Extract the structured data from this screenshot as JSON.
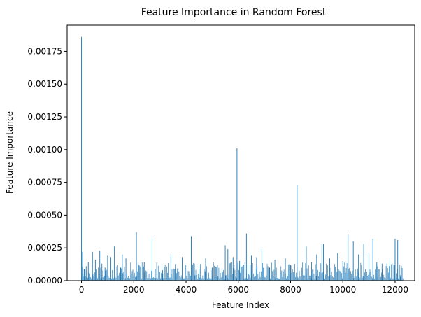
{
  "chart_data": {
    "type": "bar",
    "title": "Feature Importance in Random Forest",
    "xlabel": "Feature Index",
    "ylabel": "Feature Importance",
    "xlim": [
      -550,
      12750
    ],
    "ylim": [
      0,
      0.00195
    ],
    "xticks": [
      0,
      2000,
      4000,
      6000,
      8000,
      10000,
      12000
    ],
    "xtick_labels": [
      "0",
      "2000",
      "4000",
      "6000",
      "8000",
      "10000",
      "12000"
    ],
    "yticks": [
      0,
      0.00025,
      0.0005,
      0.00075,
      0.001,
      0.00125,
      0.0015,
      0.00175
    ],
    "ytick_labels": [
      "0.00000",
      "0.00025",
      "0.00050",
      "0.00075",
      "0.00100",
      "0.00125",
      "0.00150",
      "0.00175"
    ],
    "grid": false,
    "bar_color": "#1f77b4",
    "x_range": [
      0,
      12300
    ],
    "x": [
      0,
      40,
      100,
      180,
      260,
      420,
      530,
      700,
      780,
      900,
      1000,
      1120,
      1260,
      1380,
      1500,
      1560,
      1700,
      2100,
      2200,
      2400,
      2700,
      2820,
      3100,
      3420,
      3600,
      3850,
      4200,
      4320,
      4500,
      4750,
      5000,
      5200,
      5500,
      5600,
      5800,
      5950,
      6050,
      6200,
      6310,
      6500,
      6700,
      6900,
      7200,
      7400,
      7800,
      8000,
      8250,
      8600,
      8800,
      9000,
      9200,
      9260,
      9500,
      9800,
      10000,
      10200,
      10400,
      10600,
      10800,
      11000,
      11150,
      11300,
      11500,
      11800,
      12000,
      12100,
      12200
    ],
    "values": [
      0.00186,
      0.00022,
      9e-05,
      0.00011,
      0.00014,
      0.00022,
      0.00016,
      0.00023,
      0.00013,
      0.0001,
      0.00019,
      0.00018,
      0.00026,
      0.00012,
      0.0001,
      0.0002,
      0.00017,
      0.00037,
      0.00012,
      0.00014,
      0.00033,
      9e-05,
      8e-05,
      0.0002,
      9e-05,
      0.00018,
      0.00034,
      0.00013,
      9e-05,
      0.00017,
      0.0001,
      0.00012,
      0.00027,
      0.00024,
      0.00018,
      0.00101,
      0.00015,
      0.00012,
      0.00036,
      0.00019,
      0.00018,
      0.00024,
      0.0001,
      0.00016,
      0.00017,
      0.00012,
      0.00073,
      0.00026,
      0.00014,
      0.0002,
      0.00028,
      0.00028,
      0.00017,
      0.00021,
      0.00015,
      0.00035,
      0.0003,
      0.0002,
      0.00028,
      0.00021,
      0.00032,
      0.00014,
      0.00013,
      0.00016,
      0.00032,
      0.00031,
      3e-05
    ],
    "background_level_max": 0.00014
  }
}
